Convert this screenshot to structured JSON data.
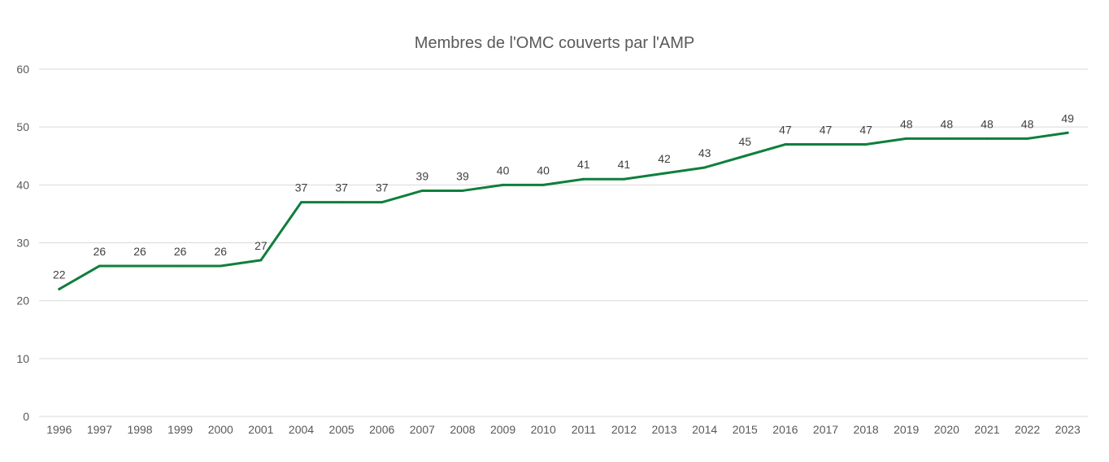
{
  "chart_data": {
    "type": "line",
    "title": "Membres de l'OMC couverts par l'AMP",
    "categories": [
      "1996",
      "1997",
      "1998",
      "1999",
      "2000",
      "2001",
      "2004",
      "2005",
      "2006",
      "2007",
      "2008",
      "2009",
      "2010",
      "2011",
      "2012",
      "2013",
      "2014",
      "2015",
      "2016",
      "2017",
      "2018",
      "2019",
      "2020",
      "2021",
      "2022",
      "2023"
    ],
    "series": [
      {
        "values": [
          22,
          26,
          26,
          26,
          26,
          27,
          37,
          37,
          37,
          39,
          39,
          40,
          40,
          41,
          41,
          42,
          43,
          45,
          47,
          47,
          47,
          48,
          48,
          48,
          48,
          49
        ],
        "color": "#0e7f3c"
      }
    ],
    "ylim": [
      0,
      60
    ],
    "yticks": [
      0,
      10,
      20,
      30,
      40,
      50,
      60
    ],
    "grid": true,
    "data_labels": true,
    "legend": "none"
  }
}
